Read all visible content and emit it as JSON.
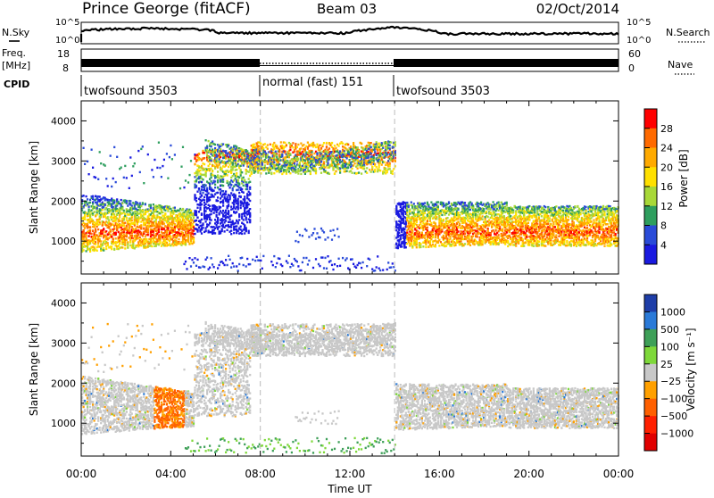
{
  "header": {
    "station": "Prince George (fitACF)",
    "beam": "Beam 03",
    "date": "02/Oct/2014"
  },
  "left_labels": {
    "nsky": "N.Sky",
    "nsky_top": "10^5",
    "nsky_bottom": "10^0",
    "freq_line1": "Freq.",
    "freq_line2": "[MHz]",
    "freq_top": "18",
    "freq_bottom": "8",
    "cpid": "CPID"
  },
  "right_labels": {
    "nsearch": "N.Search",
    "nsearch_top": "10^5",
    "nsearch_bottom": "10^0",
    "nave": "Nave",
    "nave_top": "60",
    "nave_bottom": "0"
  },
  "cpid_segments": [
    {
      "label": "twofsound 3503",
      "start_hour": 0
    },
    {
      "label": "normal (fast) 151",
      "start_hour": 8
    },
    {
      "label": "twofsound 3503",
      "start_hour": 14
    }
  ],
  "chart_data": {
    "type": "heatmap",
    "xlabel": "Time UT",
    "x_ticks": [
      "00:00",
      "04:00",
      "08:00",
      "12:00",
      "16:00",
      "20:00",
      "00:00"
    ],
    "x_range_hours": [
      0,
      24
    ],
    "vertical_markers_hours": [
      8,
      14
    ],
    "panels": [
      {
        "name": "power",
        "ylabel": "Slant Range [km]",
        "y_range_km": [
          180,
          4500
        ],
        "y_ticks": [
          1000,
          2000,
          3000,
          4000
        ],
        "colorbar_label": "Power [dB]",
        "colorbar_ticks": [
          "28",
          "24",
          "20",
          "16",
          "12",
          "8",
          "4"
        ],
        "colors": [
          "#ff0000",
          "#ff6a00",
          "#ffaa00",
          "#ffe000",
          "#a8d838",
          "#2e9e5e",
          "#2a4bd8",
          "#1a1ae0"
        ]
      },
      {
        "name": "velocity",
        "ylabel": "Slant Range [km]",
        "y_range_km": [
          180,
          4500
        ],
        "y_ticks": [
          1000,
          2000,
          3000,
          4000
        ],
        "colorbar_label": "Velocity [m s⁻¹]",
        "colorbar_ticks": [
          "1000",
          "500",
          "100",
          "25",
          "−25",
          "−100",
          "−500",
          "−1000"
        ],
        "colors": [
          "#1e3ea8",
          "#2a7ad8",
          "#3ea058",
          "#7ed83a",
          "#c8c8c8",
          "#ffa000",
          "#ff6000",
          "#ff2000",
          "#e00000"
        ]
      }
    ]
  }
}
